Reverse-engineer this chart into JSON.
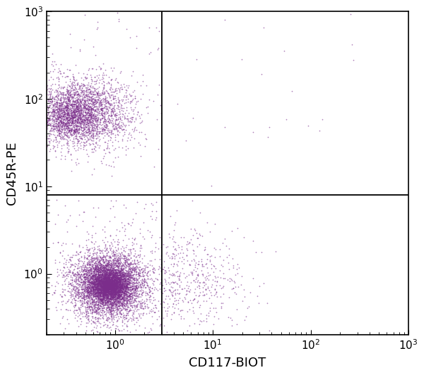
{
  "xlabel": "CD117-BIOT",
  "ylabel": "CD45R-PE",
  "dot_color": "#7B2D8B",
  "background_color": "#ffffff",
  "xline": 3.0,
  "yline": 8.0,
  "figsize": [
    6.0,
    5.31
  ],
  "dpi": 100
}
